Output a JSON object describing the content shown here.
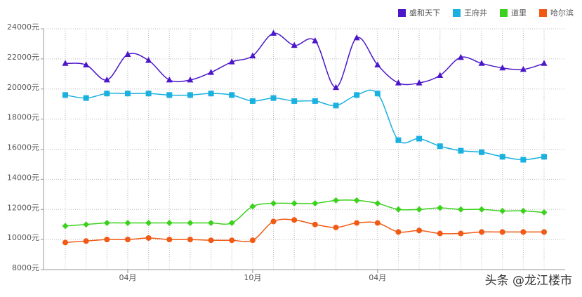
{
  "chart_data": {
    "type": "line",
    "categories": [
      null,
      null,
      null,
      "04月",
      null,
      null,
      null,
      null,
      null,
      "10月",
      null,
      null,
      null,
      null,
      null,
      "04月",
      null,
      null,
      null,
      null,
      null,
      null,
      null,
      null
    ],
    "series": [
      {
        "name": "盛和天下",
        "color": "#4b17c9",
        "marker": "triangle",
        "values": [
          21700,
          21600,
          20600,
          22300,
          21900,
          20600,
          20600,
          21100,
          21800,
          22200,
          23700,
          22900,
          23200,
          20100,
          23400,
          21600,
          20400,
          20400,
          20900,
          22100,
          21700,
          21400,
          21300,
          21700
        ]
      },
      {
        "name": "王府井",
        "color": "#1ab0e0",
        "marker": "square",
        "values": [
          19600,
          19400,
          19700,
          19700,
          19700,
          19600,
          19600,
          19700,
          19600,
          19200,
          19400,
          19200,
          19200,
          18900,
          19600,
          19700,
          16600,
          16700,
          16200,
          15900,
          15800,
          15500,
          15300,
          15500
        ]
      },
      {
        "name": "道里",
        "color": "#3cd11e",
        "marker": "diamond",
        "values": [
          10900,
          11000,
          11100,
          11100,
          11100,
          11100,
          11100,
          11100,
          11100,
          12200,
          12400,
          12400,
          12400,
          12600,
          12600,
          12400,
          12000,
          12000,
          12100,
          12000,
          12000,
          11900,
          11900,
          11800
        ]
      },
      {
        "name": "哈尔滨",
        "color": "#f05a14",
        "marker": "circle",
        "values": [
          9800,
          9900,
          10000,
          10000,
          10100,
          10000,
          10000,
          9950,
          9950,
          9950,
          11200,
          11300,
          11000,
          10800,
          11100,
          11100,
          10500,
          10600,
          10400,
          10400,
          10500,
          10500,
          10500,
          10500
        ]
      }
    ],
    "ylim": [
      8000,
      24000
    ],
    "yticks": [
      {
        "value": 8000,
        "label": "8000元"
      },
      {
        "value": 10000,
        "label": "10000元"
      },
      {
        "value": 12000,
        "label": "12000元"
      },
      {
        "value": 14000,
        "label": "14000元"
      },
      {
        "value": 16000,
        "label": "16000元"
      },
      {
        "value": 18000,
        "label": "18000元"
      },
      {
        "value": 20000,
        "label": "20000元"
      },
      {
        "value": 22000,
        "label": "22000元"
      },
      {
        "value": 24000,
        "label": "24000元"
      }
    ],
    "grid": true,
    "legend": "top-right",
    "watermark": "头条 @龙江楼市"
  }
}
